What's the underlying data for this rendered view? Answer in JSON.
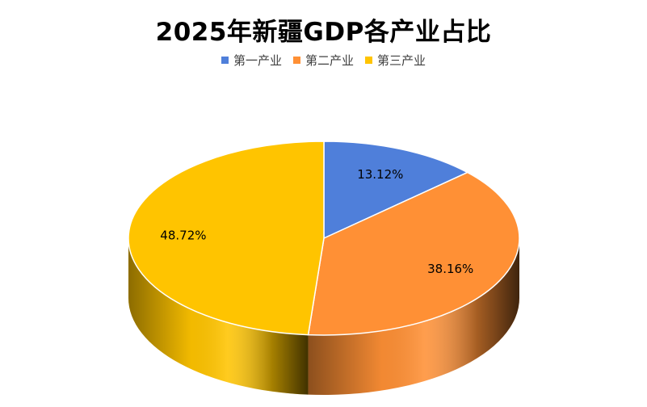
{
  "chart_data": {
    "type": "pie",
    "title": "2025年新疆GDP各产业占比",
    "categories": [
      "第一产业",
      "第二产业",
      "第三产业"
    ],
    "values": [
      13.12,
      38.16,
      48.72
    ],
    "data_labels": [
      "13.12%",
      "38.16%",
      "48.72%"
    ],
    "colors": [
      "#4F7FDA",
      "#FF9035",
      "#FFC400"
    ],
    "legend_position": "top",
    "style": "3d"
  }
}
